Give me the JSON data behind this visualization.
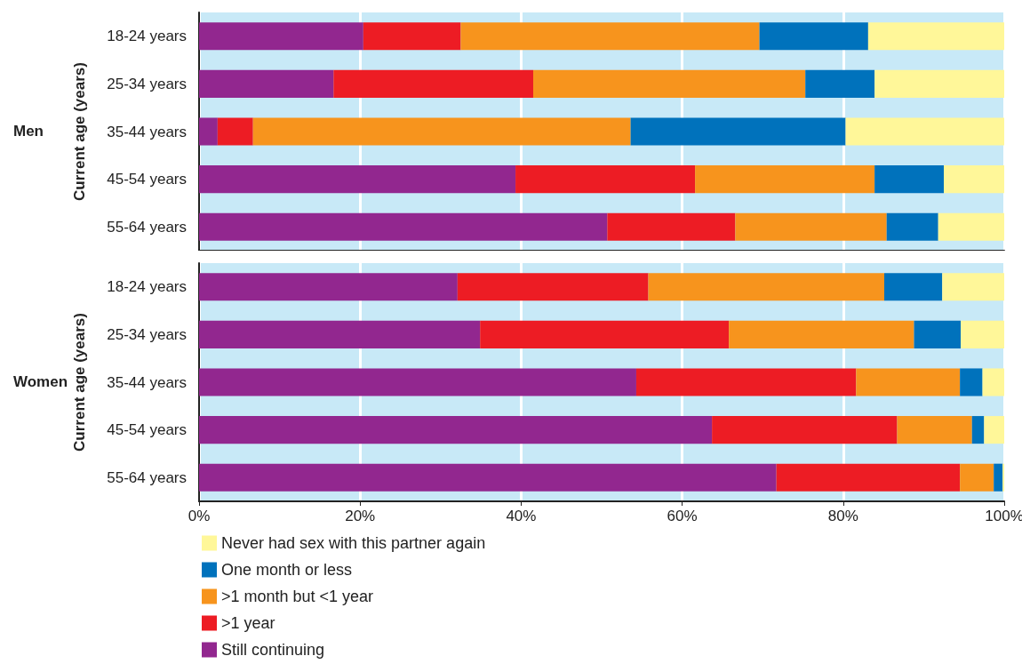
{
  "chart_data": [
    {
      "type": "bar",
      "title": "Men",
      "ylabel": "Current age (years)",
      "orientation": "horizontal",
      "stacked": true,
      "grid": "x",
      "legend": false,
      "tick_labels": "y",
      "categories": [
        "18-24 years",
        "25-34 years",
        "35-44 years",
        "45-54 years",
        "55-64 years"
      ],
      "xlim": [
        0,
        100
      ],
      "xticks": [
        {
          "value": 0,
          "label": null
        },
        {
          "value": 20,
          "label": null
        },
        {
          "value": 40,
          "label": null
        },
        {
          "value": 60,
          "label": null
        },
        {
          "value": 80,
          "label": null
        },
        {
          "value": 100,
          "label": null
        }
      ],
      "series": [
        {
          "color": "#92278f",
          "values": [
            20.4,
            16.7,
            2.3,
            39.3,
            50.7
          ]
        },
        {
          "color": "#ed1c24",
          "values": [
            12.1,
            24.8,
            4.4,
            22.3,
            15.9
          ]
        },
        {
          "color": "#f7941d",
          "values": [
            37.1,
            33.8,
            46.9,
            22.3,
            18.8
          ]
        },
        {
          "color": "#0072bc",
          "values": [
            13.5,
            8.6,
            26.7,
            8.6,
            6.4
          ]
        },
        {
          "color": "#fff799",
          "values": [
            16.9,
            16.1,
            19.7,
            7.5,
            8.2
          ]
        }
      ]
    },
    {
      "type": "bar",
      "title": "Women",
      "ylabel": "Current age (years)",
      "orientation": "horizontal",
      "stacked": true,
      "grid": "x",
      "legend": "bottom left",
      "categories": [
        "18-24 years",
        "25-34 years",
        "35-44 years",
        "45-54 years",
        "55-64 years"
      ],
      "xlim": [
        0,
        100
      ],
      "xticks": [
        {
          "value": 0,
          "label": "0%"
        },
        {
          "value": 20,
          "label": "20%"
        },
        {
          "value": 40,
          "label": "40%"
        },
        {
          "value": 60,
          "label": "60%"
        },
        {
          "value": 80,
          "label": "80%"
        },
        {
          "value": 100,
          "label": "100%"
        }
      ],
      "series": [
        {
          "name": "Still continuing",
          "color": "#92278f",
          "values": [
            32.1,
            34.9,
            54.3,
            63.7,
            71.7
          ]
        },
        {
          "name": ">1 year",
          "color": "#ed1c24",
          "values": [
            23.7,
            30.9,
            27.3,
            23.0,
            22.8
          ]
        },
        {
          "name": ">1 month but <1 year",
          "color": "#f7941d",
          "values": [
            29.3,
            23.0,
            12.9,
            9.3,
            4.2
          ]
        },
        {
          "name": "One month or less",
          "color": "#0072bc",
          "values": [
            7.2,
            5.8,
            2.8,
            1.5,
            1.1
          ]
        },
        {
          "name": "Never had sex with this partner again",
          "color": "#fff799",
          "values": [
            7.7,
            5.4,
            2.7,
            2.5,
            0.2
          ]
        }
      ]
    }
  ]
}
